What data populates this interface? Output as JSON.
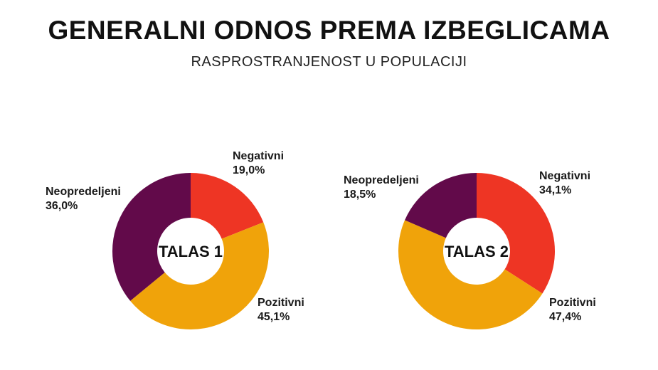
{
  "title": "GENERALNI ODNOS PREMA IZBEGLICAMA",
  "subtitle": "RASPROSTRANJENOST U POPULACIJI",
  "colors": {
    "Negativni": "#ee3524",
    "Pozitivni": "#f0a30a",
    "Neopredeljeni": "#620a4a"
  },
  "chart_data": [
    {
      "type": "pie",
      "center_label": "TALAS 1",
      "slices": [
        {
          "label": "Negativni",
          "value": 19.0,
          "value_text": "19,0%"
        },
        {
          "label": "Pozitivni",
          "value": 45.1,
          "value_text": "45,1%"
        },
        {
          "label": "Neopredeljeni",
          "value": 36.0,
          "value_text": "36,0%"
        }
      ]
    },
    {
      "type": "pie",
      "center_label": "TALAS 2",
      "slices": [
        {
          "label": "Negativni",
          "value": 34.1,
          "value_text": "34,1%"
        },
        {
          "label": "Pozitivni",
          "value": 47.4,
          "value_text": "47,4%"
        },
        {
          "label": "Neopredeljeni",
          "value": 18.5,
          "value_text": "18,5%"
        }
      ]
    }
  ]
}
